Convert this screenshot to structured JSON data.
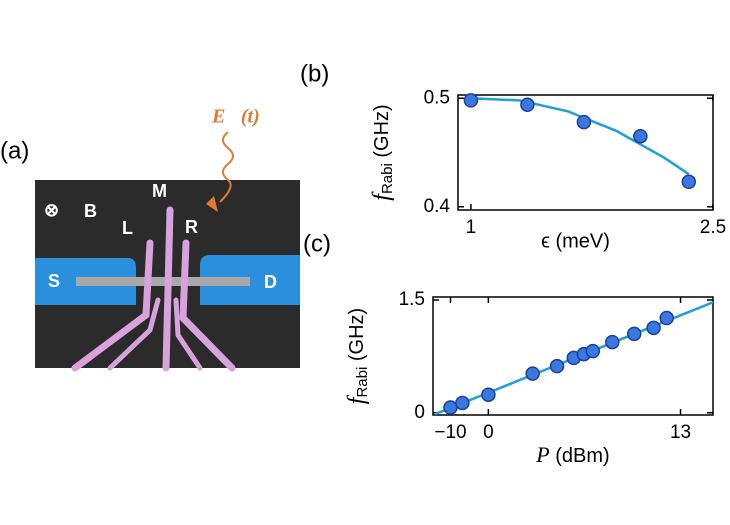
{
  "image": {
    "panel_label": "(a)",
    "field_symbol": "⊗",
    "field_label": "B",
    "gate_labels": [
      "L",
      "M",
      "R"
    ],
    "source_label": "S",
    "drain_label": "D",
    "drive_label": "E⃗(t)"
  },
  "chart_data": [
    {
      "type": "scatter",
      "panel_label": "(b)",
      "x": [
        1.0,
        1.35,
        1.7,
        2.05,
        2.35
      ],
      "values": [
        0.498,
        0.494,
        0.478,
        0.465,
        0.423
      ],
      "errors": [
        0.004,
        0.003,
        0.003,
        0.004,
        0.004
      ],
      "fit": {
        "x": [
          1.0,
          1.3,
          1.6,
          1.9,
          2.2,
          2.35
        ],
        "values": [
          0.5,
          0.498,
          0.488,
          0.47,
          0.445,
          0.43
        ]
      },
      "color": "#3a78e0",
      "fit_color": "#1fa0d8",
      "xlabel": "ϵ (meV)",
      "ylabel": {
        "symbol": "f",
        "subscript": "Rabi",
        "unit": "(GHz)"
      },
      "xlim": [
        0.92,
        2.5
      ],
      "ylim": [
        0.397,
        0.503
      ],
      "xticks": [
        1,
        2.5
      ],
      "yticks": [
        0.4,
        0.5
      ]
    },
    {
      "type": "scatter",
      "panel_label": "(c)",
      "xscale": "amplitude-dB",
      "x": [
        -10.0,
        -5.5,
        0,
        5.1,
        7.0,
        8.1,
        8.7,
        9.2,
        10.2,
        11.2,
        12.0,
        12.5
      ],
      "values": [
        0.07,
        0.13,
        0.24,
        0.52,
        0.62,
        0.73,
        0.78,
        0.82,
        0.94,
        1.05,
        1.13,
        1.26
      ],
      "fit": {
        "x": [
          -30,
          14.07
        ],
        "values": [
          -0.02,
          1.47
        ]
      },
      "color": "#3a78e0",
      "fit_color": "#1fa0d8",
      "xlabel": {
        "symbol": "P",
        "unit": "(dBm)"
      },
      "ylabel": {
        "symbol": "f",
        "subscript": "Rabi",
        "unit": "(GHz)"
      },
      "xlim": [
        -60,
        14.07
      ],
      "ylim": [
        -0.03,
        1.54
      ],
      "xticks": [
        {
          "value": -10,
          "label": "−10"
        },
        0,
        13
      ],
      "yticks": [
        0,
        1.5
      ]
    }
  ]
}
